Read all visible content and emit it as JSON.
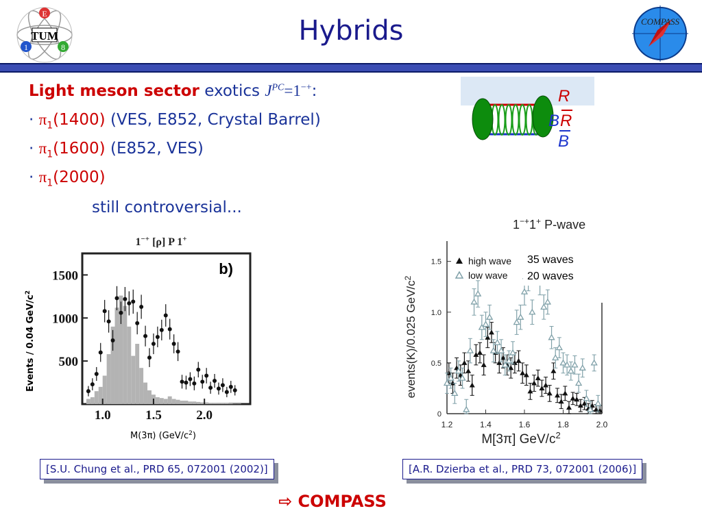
{
  "slide": {
    "title": "Hybrids",
    "logo_left": {
      "letters": [
        "E",
        "1",
        "8"
      ],
      "center": "TUM"
    },
    "logo_right": {
      "text": "COMPASS"
    }
  },
  "content": {
    "heading_red": "Light meson sector",
    "heading_blue": "exotics",
    "jpc_j": "J",
    "jpc_sup": "PC",
    "jpc_value": "=1",
    "jpc_value_sup": "−+",
    "jpc_colon": ":",
    "bullets": [
      {
        "particle": "π",
        "sub": "1",
        "mass": "(1400)",
        "note": " (VES, E852, Crystal Barrel)"
      },
      {
        "particle": "π",
        "sub": "1",
        "mass": "(1600)",
        "note": " (E852, VES)"
      },
      {
        "particle": "π",
        "sub": "1",
        "mass": "(2000)",
        "note": ""
      }
    ],
    "remark": "still controversial...",
    "bullet_glyph": "·"
  },
  "diagram": {
    "labels": {
      "top": "R",
      "mid_left": "B",
      "mid_right": "R",
      "bottom": "B"
    },
    "colors": {
      "quark_line_top": "#cc0000",
      "quark_line_bottom": "#1a33cc",
      "gluon": "#1a9e1a",
      "blob": "#0d8c0d",
      "band": "#dce8f5"
    }
  },
  "chart_data": [
    {
      "type": "scatter",
      "panel_label": "b)",
      "title": "1",
      "title_sup": "−+",
      "title_mid": " [ρ] P  1",
      "title_sup2": "+",
      "ylabel": "Events / 0.04 GeV/c",
      "ylabel_sup": "2",
      "xlabel": "M(3π) (GeV/c",
      "xlabel_sup": "2",
      "xlabel_end": ")",
      "xlim": [
        0.8,
        2.45
      ],
      "ylim": [
        0,
        1750
      ],
      "xticks": [
        1.0,
        1.5,
        2.0
      ],
      "xtick_labels": [
        "1.0",
        "1.5",
        "2.0"
      ],
      "yticks": [
        500,
        1000,
        1500
      ],
      "ytick_labels": [
        "500",
        "1000",
        "1500"
      ],
      "histogram": {
        "bin_width": 0.04,
        "x": [
          0.82,
          0.86,
          0.9,
          0.94,
          0.98,
          1.02,
          1.06,
          1.1,
          1.14,
          1.18,
          1.22,
          1.26,
          1.3,
          1.34,
          1.38,
          1.42,
          1.46,
          1.5,
          1.54,
          1.58,
          1.62,
          1.66,
          1.7,
          1.74,
          1.78,
          1.82,
          1.86,
          1.9,
          1.94,
          1.98,
          2.02,
          2.06,
          2.1,
          2.14,
          2.18,
          2.22,
          2.26,
          2.3,
          2.34
        ],
        "y": [
          0,
          60,
          80,
          150,
          200,
          330,
          580,
          900,
          1120,
          1260,
          1140,
          900,
          560,
          700,
          420,
          250,
          160,
          110,
          80,
          70,
          60,
          90,
          60,
          50,
          40,
          40,
          30,
          30,
          25,
          20,
          20,
          15,
          15,
          10,
          10,
          10,
          8,
          5,
          5
        ]
      },
      "points": {
        "x": [
          0.86,
          0.9,
          0.94,
          0.98,
          1.02,
          1.06,
          1.1,
          1.14,
          1.18,
          1.22,
          1.26,
          1.3,
          1.34,
          1.38,
          1.42,
          1.46,
          1.5,
          1.54,
          1.58,
          1.62,
          1.66,
          1.7,
          1.74,
          1.78,
          1.82,
          1.86,
          1.9,
          1.94,
          1.98,
          2.02,
          2.06,
          2.1,
          2.14,
          2.18,
          2.22,
          2.26,
          2.3
        ],
        "y": [
          150,
          230,
          350,
          600,
          1080,
          960,
          740,
          1230,
          1060,
          1220,
          1170,
          1190,
          940,
          1130,
          790,
          540,
          700,
          780,
          860,
          1030,
          870,
          700,
          610,
          260,
          250,
          290,
          240,
          400,
          260,
          330,
          190,
          270,
          180,
          220,
          140,
          200,
          160
        ],
        "err": [
          60,
          70,
          80,
          110,
          130,
          130,
          120,
          140,
          130,
          140,
          140,
          140,
          130,
          140,
          120,
          110,
          120,
          120,
          120,
          130,
          120,
          110,
          110,
          80,
          80,
          80,
          80,
          90,
          80,
          90,
          70,
          80,
          70,
          80,
          60,
          70,
          60
        ]
      }
    },
    {
      "type": "scatter",
      "title": "1",
      "title_sup": "−+",
      "title_mid": "1",
      "title_sup2": "+",
      "title_end": " P-wave",
      "ylabel": "events(K)/0.025 GeV/c",
      "ylabel_sup": "2",
      "xlabel": "M[3π]  GeV/c",
      "xlabel_sup": "2",
      "xlim": [
        1.2,
        2.0
      ],
      "ylim": [
        0,
        1.7
      ],
      "xticks": [
        1.2,
        1.4,
        1.6,
        1.8,
        2.0
      ],
      "xtick_labels": [
        "1.2",
        "1.4",
        "1.6",
        "1.8",
        "2.0"
      ],
      "yticks": [
        0,
        0.5,
        1.0,
        1.5
      ],
      "ytick_labels": [
        "0",
        "0.5",
        "1.0",
        "1.5"
      ],
      "legend": [
        "high wave",
        "low wave"
      ],
      "legend_overlay": [
        "35 waves",
        "20 waves"
      ],
      "legend_position": "top-left",
      "series": [
        {
          "name": "high wave",
          "color": "#111111",
          "x": [
            1.21,
            1.23,
            1.25,
            1.27,
            1.29,
            1.31,
            1.33,
            1.35,
            1.37,
            1.39,
            1.41,
            1.43,
            1.45,
            1.47,
            1.49,
            1.51,
            1.53,
            1.55,
            1.57,
            1.59,
            1.61,
            1.63,
            1.65,
            1.67,
            1.69,
            1.71,
            1.73,
            1.75,
            1.77,
            1.79,
            1.81,
            1.83,
            1.85,
            1.87,
            1.89,
            1.91,
            1.93,
            1.95,
            1.97,
            1.99
          ],
          "y": [
            0.4,
            0.3,
            0.45,
            0.38,
            0.5,
            0.42,
            0.28,
            0.58,
            0.6,
            0.48,
            0.75,
            0.8,
            0.6,
            0.5,
            0.55,
            0.48,
            0.45,
            0.5,
            0.52,
            0.4,
            0.38,
            0.22,
            0.3,
            0.35,
            0.25,
            0.28,
            0.2,
            0.42,
            0.18,
            0.12,
            0.2,
            0.06,
            0.15,
            0.14,
            0.08,
            0.1,
            0.05,
            0.08,
            0.04,
            0.03
          ],
          "err": [
            0.1,
            0.1,
            0.1,
            0.1,
            0.1,
            0.1,
            0.1,
            0.1,
            0.1,
            0.1,
            0.1,
            0.1,
            0.1,
            0.1,
            0.1,
            0.1,
            0.1,
            0.1,
            0.1,
            0.1,
            0.1,
            0.08,
            0.08,
            0.08,
            0.08,
            0.08,
            0.08,
            0.08,
            0.07,
            0.07,
            0.07,
            0.06,
            0.06,
            0.06,
            0.06,
            0.06,
            0.05,
            0.05,
            0.05,
            0.05
          ]
        },
        {
          "name": "low wave",
          "color": "#7fa0a8",
          "x": [
            1.2,
            1.22,
            1.24,
            1.26,
            1.28,
            1.3,
            1.32,
            1.34,
            1.36,
            1.38,
            1.4,
            1.42,
            1.44,
            1.46,
            1.48,
            1.5,
            1.52,
            1.54,
            1.56,
            1.58,
            1.6,
            1.62,
            1.64,
            1.66,
            1.68,
            1.7,
            1.72,
            1.74,
            1.76,
            1.78,
            1.8,
            1.82,
            1.84,
            1.86,
            1.88,
            1.9,
            1.92,
            1.94,
            1.96,
            1.98
          ],
          "y": [
            0.3,
            0.35,
            0.2,
            0.42,
            0.35,
            0.04,
            0.62,
            1.1,
            1.18,
            0.85,
            0.88,
            0.95,
            0.62,
            0.7,
            0.62,
            0.48,
            0.52,
            0.6,
            0.9,
            0.95,
            1.2,
            1.35,
            1.0,
            1.45,
            1.3,
            1.05,
            1.1,
            0.75,
            0.55,
            0.65,
            0.5,
            0.48,
            0.42,
            0.48,
            0.3,
            0.45,
            0.15,
            0.04,
            0.5,
            0.1
          ],
          "err": [
            0.1,
            0.1,
            0.1,
            0.1,
            0.1,
            0.1,
            0.12,
            0.13,
            0.13,
            0.12,
            0.12,
            0.12,
            0.11,
            0.11,
            0.11,
            0.1,
            0.1,
            0.11,
            0.12,
            0.12,
            0.13,
            0.14,
            0.12,
            0.14,
            0.13,
            0.12,
            0.12,
            0.11,
            0.1,
            0.1,
            0.1,
            0.1,
            0.09,
            0.09,
            0.09,
            0.09,
            0.08,
            0.08,
            0.08,
            0.08
          ]
        }
      ]
    }
  ],
  "references": {
    "left": "[S.U. Chung et al., PRD 65, 072001 (2002)]",
    "right": "[A.R. Dzierba et al., PRD 73, 072001 (2006)]"
  },
  "footer": {
    "arrow": "⇨",
    "text": "COMPASS"
  }
}
